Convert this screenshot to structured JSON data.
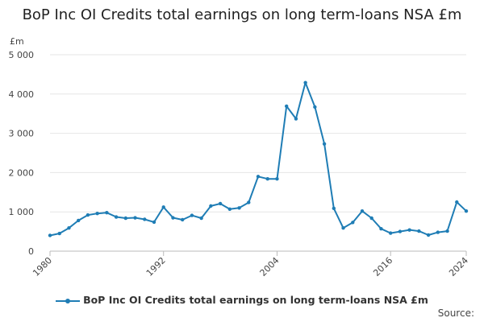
{
  "chart_data": {
    "type": "line",
    "title": "BoP Inc OI Credits total earnings on long term-loans NSA £m",
    "ylabel": "£m",
    "ylim": [
      0,
      5000
    ],
    "yticks": [
      0,
      1000,
      2000,
      3000,
      4000,
      5000
    ],
    "ytick_labels": [
      "0",
      "1 000",
      "2 000",
      "3 000",
      "4 000",
      "5 000"
    ],
    "xlim": [
      1980,
      2024
    ],
    "xticks": [
      1980,
      1992,
      2004,
      2016,
      2024
    ],
    "xtick_labels": [
      "1980",
      "1992",
      "2004",
      "2016",
      "2024"
    ],
    "grid": "horizontal",
    "legend_position": "bottom",
    "color": "#1f7db5",
    "series": [
      {
        "name": "BoP Inc OI Credits total earnings on long term-loans NSA £m",
        "x": [
          1980,
          1981,
          1982,
          1983,
          1984,
          1985,
          1986,
          1987,
          1988,
          1989,
          1990,
          1991,
          1992,
          1993,
          1994,
          1995,
          1996,
          1997,
          1998,
          1999,
          2000,
          2001,
          2002,
          2003,
          2004,
          2005,
          2006,
          2007,
          2008,
          2009,
          2010,
          2011,
          2012,
          2013,
          2014,
          2015,
          2016,
          2017,
          2018,
          2019,
          2020,
          2021,
          2022,
          2023,
          2024
        ],
        "values": [
          400,
          450,
          590,
          780,
          920,
          960,
          980,
          870,
          840,
          850,
          810,
          740,
          1120,
          850,
          800,
          910,
          840,
          1150,
          1210,
          1070,
          1100,
          1240,
          1900,
          1840,
          1840,
          3690,
          3370,
          4290,
          3670,
          2730,
          1090,
          590,
          730,
          1020,
          840,
          570,
          460,
          500,
          540,
          510,
          410,
          480,
          510,
          1250,
          1020
        ]
      }
    ]
  },
  "source_label": "Source:"
}
